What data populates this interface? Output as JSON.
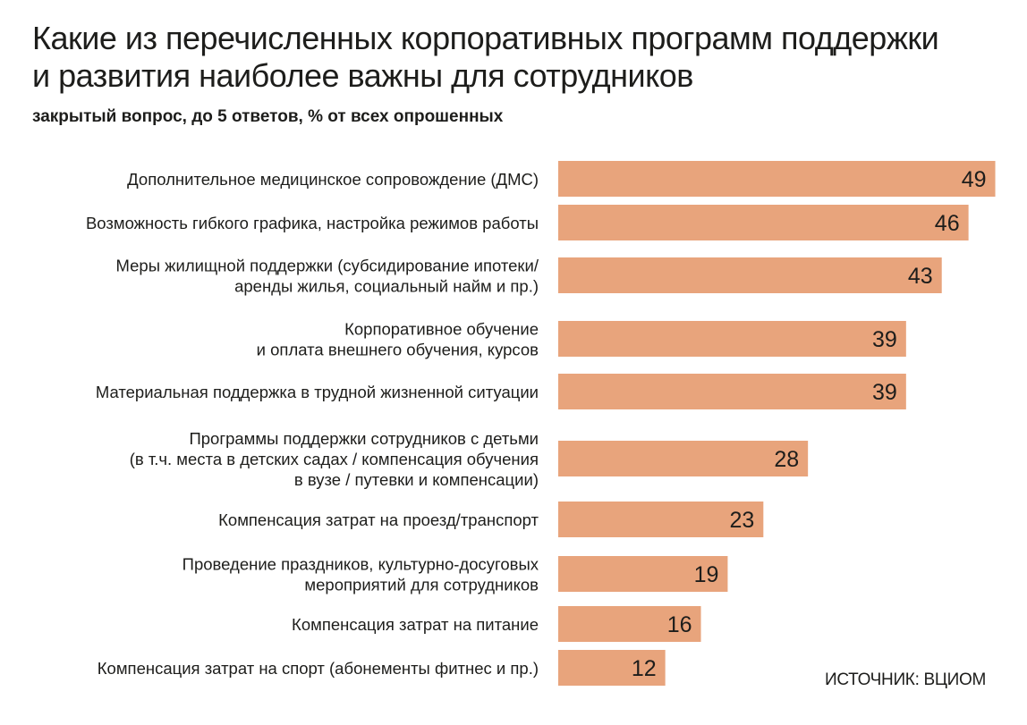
{
  "header": {
    "title_line1": "Какие из перечисленных корпоративных программ поддержки",
    "title_line2": "и развития наиболее важны для сотрудников",
    "subtitle": "закрытый вопрос, до 5 ответов, % от всех опрошенных"
  },
  "source": "ИСТОЧНИК: ВЦИОМ",
  "chart_data": {
    "type": "bar",
    "orientation": "horizontal",
    "bar_color": "#e8a47c",
    "categories": [
      [
        "Дополнительное медицинское сопровождение (ДМС)"
      ],
      [
        "Возможность гибкого графика, настройка режимов работы"
      ],
      [
        "Меры жилищной поддержки (субсидирование ипотеки/",
        "аренды жилья, социальный найм и пр.)"
      ],
      [
        "Корпоративное обучение",
        "и оплата внешнего обучения, курсов"
      ],
      [
        "Материальная поддержка в трудной жизненной ситуации"
      ],
      [
        "Программы поддержки сотрудников с детьми",
        "(в т.ч. места в детских садах / компенсация обучения",
        "в вузе / путевки и компенсации)"
      ],
      [
        "Компенсация затрат на проезд/транспорт"
      ],
      [
        "Проведение праздников, культурно-досуговых",
        "мероприятий для сотрудников"
      ],
      [
        "Компенсация затрат на питание"
      ],
      [
        "Компенсация затрат на спорт (абонементы фитнес и пр.)"
      ]
    ],
    "values": [
      49,
      46,
      43,
      39,
      39,
      28,
      23,
      19,
      16,
      12
    ],
    "labels": [
      "49",
      "46",
      "43",
      "39",
      "39",
      "28",
      "23",
      "19",
      "16",
      "12"
    ]
  }
}
